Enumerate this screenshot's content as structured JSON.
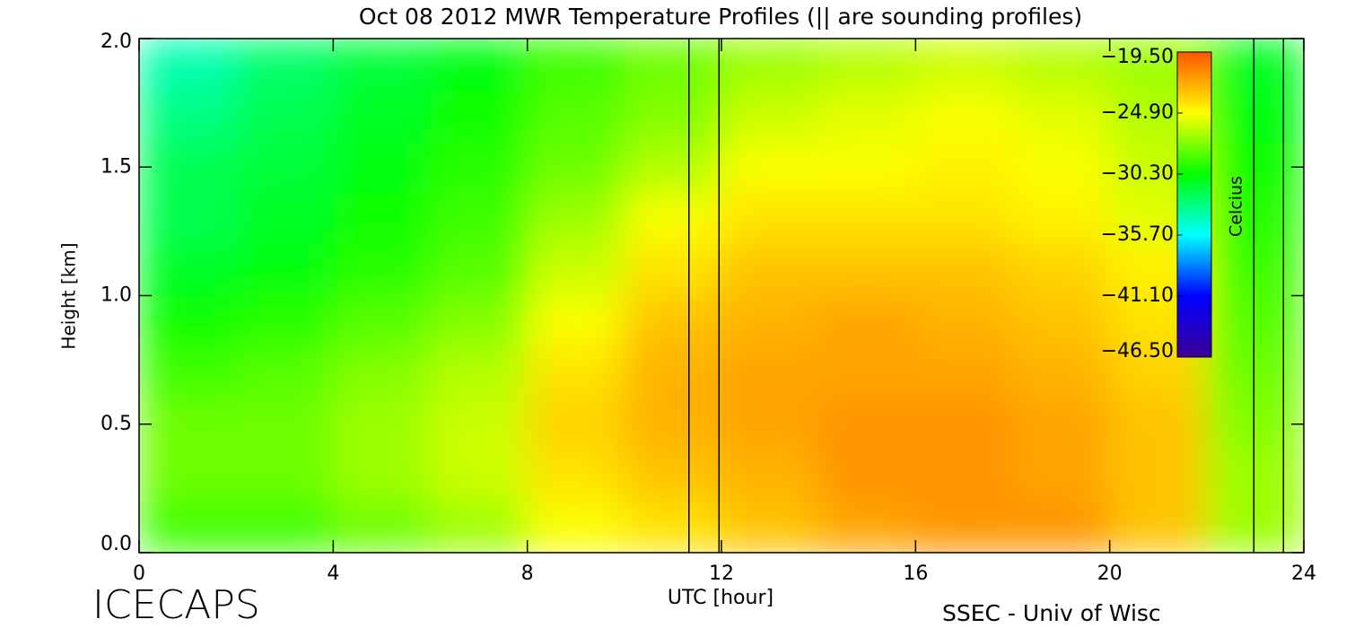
{
  "chart_data": {
    "type": "heatmap",
    "title": "Oct 08 2012 MWR Temperature Profiles (|| are sounding profiles)",
    "x_label": "UTC [hour]",
    "y_label": "Height [km]",
    "colorbar_label": "Celcius",
    "footer_left": "ICECAPS",
    "footer_right": "SSEC - Univ of Wisc",
    "x": [
      1,
      3,
      5,
      7,
      9,
      11,
      13,
      15,
      17,
      19,
      21,
      23
    ],
    "y": [
      0.1,
      0.3,
      0.5,
      0.7,
      0.9,
      1.1,
      1.3,
      1.5,
      1.7,
      1.9
    ],
    "z": [
      [
        -29,
        -29,
        -28,
        -27,
        -25,
        -24,
        -23,
        -22,
        -21.5,
        -21.5,
        -23,
        -27
      ],
      [
        -28,
        -28,
        -27,
        -26,
        -24,
        -23,
        -22.5,
        -21.5,
        -21.5,
        -22,
        -23,
        -27
      ],
      [
        -28,
        -28,
        -27,
        -26,
        -23.5,
        -22.5,
        -22,
        -21.5,
        -21.5,
        -22,
        -23,
        -27.5
      ],
      [
        -29,
        -28.5,
        -27.5,
        -26.5,
        -24,
        -22.5,
        -22,
        -22,
        -22,
        -22.5,
        -23.5,
        -28
      ],
      [
        -30,
        -29.5,
        -28.5,
        -27.5,
        -25,
        -23,
        -22.5,
        -22,
        -22.5,
        -23,
        -24,
        -28.5
      ],
      [
        -31,
        -30.5,
        -29.5,
        -28.5,
        -26,
        -24,
        -23,
        -23,
        -23,
        -23.5,
        -24.5,
        -29
      ],
      [
        -32,
        -31,
        -30,
        -29,
        -27,
        -25,
        -24,
        -24,
        -24,
        -24.5,
        -25.5,
        -29.5
      ],
      [
        -32,
        -31.5,
        -30.5,
        -29.5,
        -28,
        -26.5,
        -25,
        -25,
        -24.5,
        -25,
        -26,
        -30
      ],
      [
        -33,
        -32,
        -31,
        -30,
        -28.5,
        -27.5,
        -26,
        -25.5,
        -25,
        -25.5,
        -26.5,
        -30.5
      ],
      [
        -34,
        -32.5,
        -31.5,
        -30.5,
        -29,
        -28,
        -27,
        -26.5,
        -26,
        -26.5,
        -27,
        -31
      ]
    ],
    "sounding_x": [
      11.33,
      11.95,
      22.97,
      23.58
    ],
    "xlim": [
      0,
      24
    ],
    "xticks": [
      0,
      4,
      8,
      12,
      16,
      20,
      24
    ],
    "ylim": [
      0,
      2
    ],
    "yticks": [
      {
        "value": 0,
        "label": "0.0"
      },
      {
        "value": 0.5,
        "label": "0.5"
      },
      {
        "value": 1,
        "label": "1.0"
      },
      {
        "value": 1.5,
        "label": "1.5"
      },
      {
        "value": 2,
        "label": "2.0"
      }
    ],
    "zlim": [
      -46.5,
      -19.5
    ],
    "zticks": [
      {
        "value": -19.5,
        "label": "−19.50"
      },
      {
        "value": -24.9,
        "label": "−24.90"
      },
      {
        "value": -30.3,
        "label": "−30.30"
      },
      {
        "value": -35.7,
        "label": "−35.70"
      },
      {
        "value": -41.1,
        "label": "−41.10"
      },
      {
        "value": -46.5,
        "label": "−46.50"
      }
    ],
    "colorscale": [
      "#3c0096",
      "#0000ff",
      "#00ffff",
      "#00ff00",
      "#ffff00",
      "#ff5500"
    ]
  }
}
